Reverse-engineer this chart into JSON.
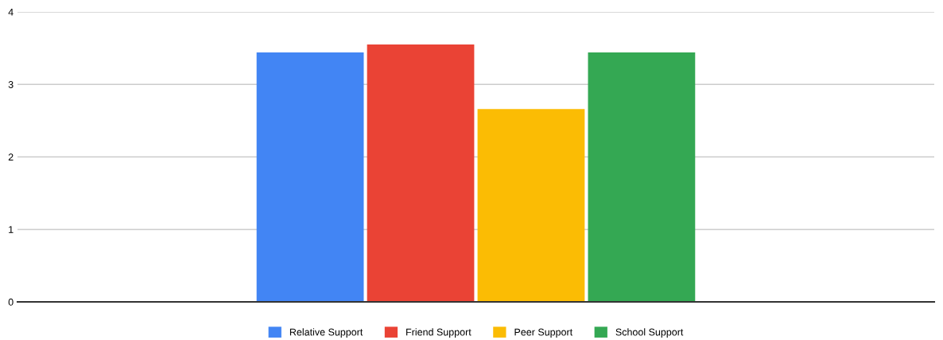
{
  "chart_data": {
    "type": "bar",
    "categories": [
      null
    ],
    "series": [
      {
        "name": "Relative Support",
        "color": "#4285f4",
        "values": [
          3.44
        ]
      },
      {
        "name": "Friend Support",
        "color": "#ea4335",
        "values": [
          3.55
        ]
      },
      {
        "name": "Peer Support",
        "color": "#fbbc04",
        "values": [
          2.66
        ]
      },
      {
        "name": "School Support",
        "color": "#34a853",
        "values": [
          3.44
        ]
      }
    ],
    "ylim": [
      0,
      4
    ],
    "yticks": [
      0,
      1,
      2,
      3,
      4
    ],
    "grid": "y",
    "legend": "bottom"
  }
}
